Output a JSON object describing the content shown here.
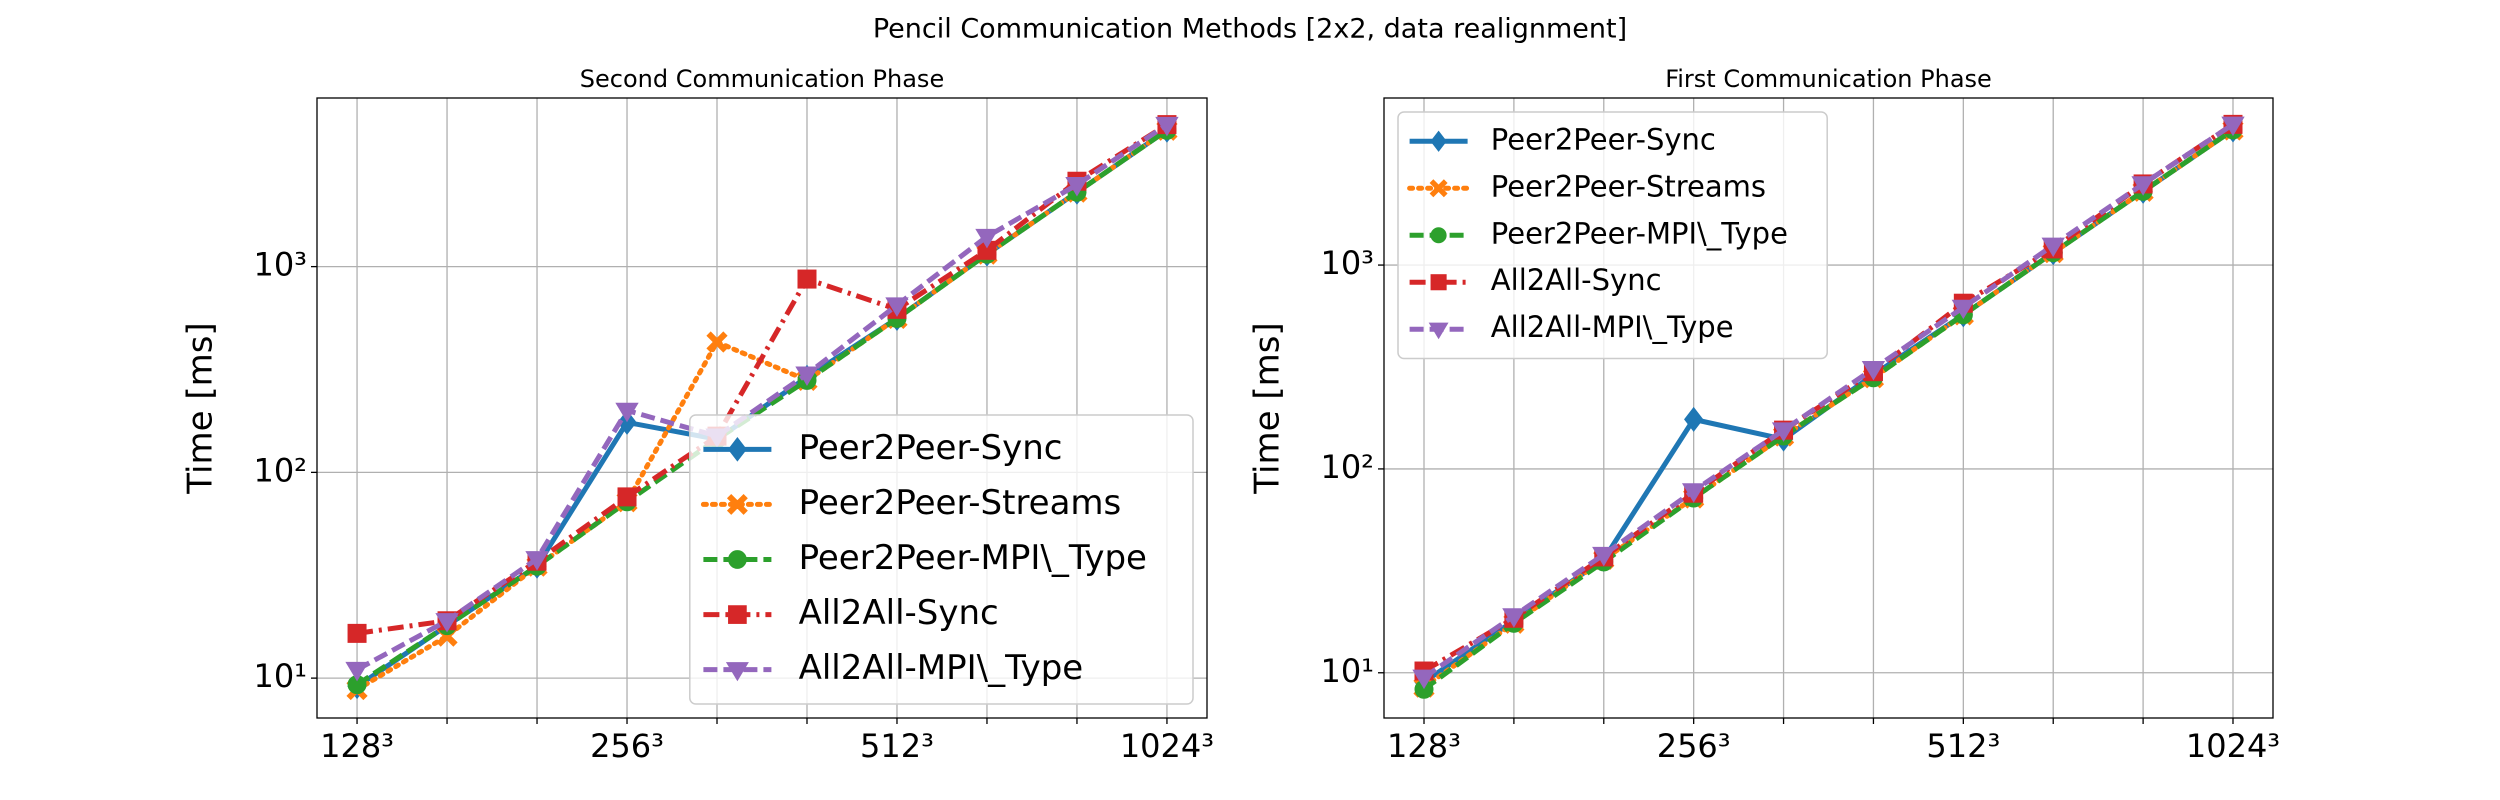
{
  "title": "Pencil Communication Methods [2x2, data realignment]",
  "chart_data": [
    {
      "type": "line",
      "title": "Second Communication Phase",
      "ylabel": "Time [ms]",
      "categories": [
        "128³",
        null,
        null,
        "256³",
        null,
        null,
        "512³",
        null,
        null,
        "1024³"
      ],
      "log_scale": true,
      "grid": true,
      "legend": "lower right",
      "ylim": [
        6.4,
        6600
      ],
      "yticks": [
        {
          "value": 10,
          "label": "10¹"
        },
        {
          "value": 100,
          "label": "10²"
        },
        {
          "value": 1000,
          "label": "10³"
        }
      ],
      "series": [
        {
          "name": "Peer2Peer-Sync",
          "color": "#1f77b4",
          "values": [
            9.1,
            18,
            35,
            175,
            145,
            290,
            560,
            1150,
            2300,
            4600
          ]
        },
        {
          "name": "Peer2Peer-Streams",
          "color": "#ff7f0e",
          "values": [
            8.8,
            16,
            35,
            72,
            430,
            280,
            560,
            1150,
            2300,
            4600
          ]
        },
        {
          "name": "Peer2Peer-MPI\\_Type",
          "color": "#2ca02c",
          "values": [
            9.3,
            18,
            35,
            72,
            145,
            280,
            560,
            1150,
            2300,
            4600
          ]
        },
        {
          "name": "All2All-Sync",
          "color": "#d62728",
          "values": [
            16.5,
            19,
            37,
            76,
            150,
            870,
            620,
            1200,
            2600,
            4900
          ]
        },
        {
          "name": "All2All-MPI\\_Type",
          "color": "#9467bd",
          "values": [
            11,
            19,
            38,
            200,
            150,
            300,
            650,
            1400,
            2500,
            4900
          ]
        }
      ]
    },
    {
      "type": "line",
      "title": "First Communication Phase",
      "ylabel": "Time [ms]",
      "categories": [
        "128³",
        null,
        null,
        "256³",
        null,
        null,
        "512³",
        null,
        null,
        "1024³"
      ],
      "log_scale": true,
      "grid": true,
      "legend": "upper left",
      "ylim": [
        6.0,
        6600
      ],
      "yticks": [
        {
          "value": 10,
          "label": "10¹"
        },
        {
          "value": 100,
          "label": "10²"
        },
        {
          "value": 1000,
          "label": "10³"
        }
      ],
      "series": [
        {
          "name": "Peer2Peer-Sync",
          "color": "#1f77b4",
          "values": [
            9,
            18,
            36,
            175,
            140,
            290,
            570,
            1150,
            2300,
            4600
          ]
        },
        {
          "name": "Peer2Peer-Streams",
          "color": "#ff7f0e",
          "values": [
            8.5,
            17.5,
            36,
            72,
            145,
            280,
            570,
            1150,
            2300,
            4600
          ]
        },
        {
          "name": "Peer2Peer-MPI\\_Type",
          "color": "#2ca02c",
          "values": [
            8.3,
            17.5,
            35,
            72,
            145,
            280,
            570,
            1150,
            2300,
            4600
          ]
        },
        {
          "name": "All2All-Sync",
          "color": "#d62728",
          "values": [
            10.2,
            18.5,
            37,
            76,
            155,
            300,
            650,
            1200,
            2500,
            4900
          ]
        },
        {
          "name": "All2All-MPI\\_Type",
          "color": "#9467bd",
          "values": [
            9.5,
            19,
            38,
            78,
            155,
            310,
            620,
            1250,
            2500,
            4900
          ]
        }
      ]
    }
  ]
}
